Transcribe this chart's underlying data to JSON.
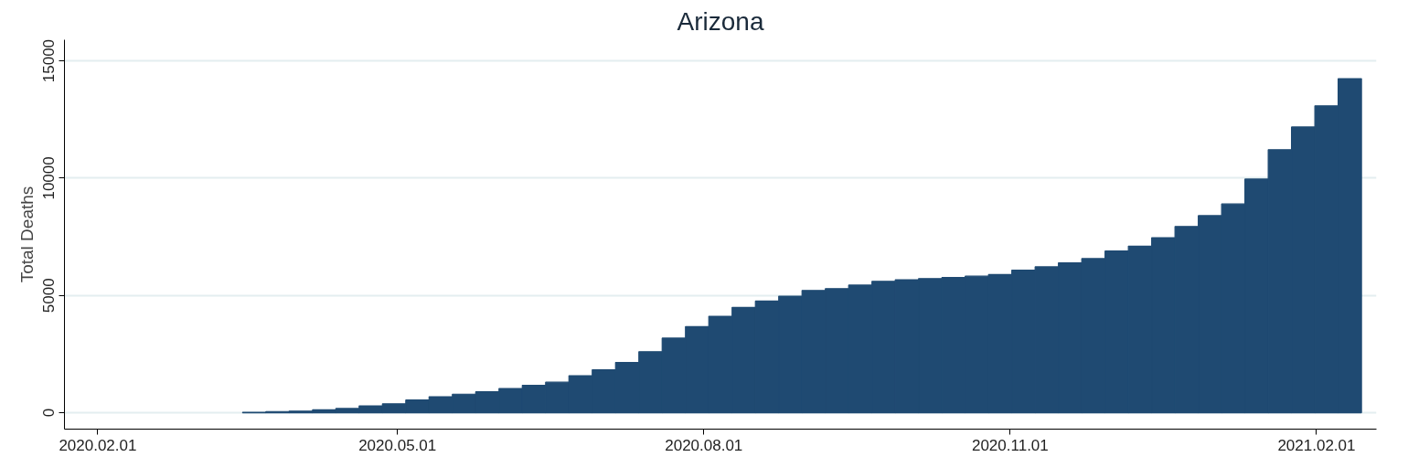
{
  "chart_data": {
    "type": "bar",
    "title": "Arizona",
    "ylabel": "Total Deaths",
    "color": "#1f4a72",
    "x": [
      "2020-03-19",
      "2020-03-26",
      "2020-04-02",
      "2020-04-09",
      "2020-04-16",
      "2020-04-23",
      "2020-04-30",
      "2020-05-07",
      "2020-05-14",
      "2020-05-21",
      "2020-05-28",
      "2020-06-04",
      "2020-06-11",
      "2020-06-18",
      "2020-06-25",
      "2020-07-02",
      "2020-07-09",
      "2020-07-16",
      "2020-07-23",
      "2020-07-30",
      "2020-08-06",
      "2020-08-13",
      "2020-08-20",
      "2020-08-27",
      "2020-09-03",
      "2020-09-10",
      "2020-09-17",
      "2020-09-24",
      "2020-10-01",
      "2020-10-08",
      "2020-10-15",
      "2020-10-22",
      "2020-10-29",
      "2020-11-05",
      "2020-11-12",
      "2020-11-19",
      "2020-11-26",
      "2020-12-03",
      "2020-12-10",
      "2020-12-17",
      "2020-12-24",
      "2020-12-31",
      "2021-01-07",
      "2021-01-14",
      "2021-01-21",
      "2021-01-28",
      "2021-02-04",
      "2021-02-11"
    ],
    "values": [
      20,
      50,
      70,
      120,
      180,
      290,
      380,
      540,
      680,
      790,
      890,
      1030,
      1170,
      1300,
      1580,
      1830,
      2140,
      2600,
      3180,
      3670,
      4110,
      4490,
      4760,
      4970,
      5210,
      5290,
      5440,
      5600,
      5670,
      5720,
      5760,
      5820,
      5890,
      6080,
      6220,
      6390,
      6570,
      6890,
      7100,
      7460,
      7940,
      8400,
      8900,
      9960,
      11210,
      12180,
      13080,
      14240
    ],
    "xlim": [
      "2020-01-22",
      "2021-02-19"
    ],
    "xticks": [
      {
        "value": "2020-02-01",
        "label": "2020.02.01"
      },
      {
        "value": "2020-05-01",
        "label": "2020.05.01"
      },
      {
        "value": "2020-08-01",
        "label": "2020.08.01"
      },
      {
        "value": "2020-11-01",
        "label": "2020.11.01"
      },
      {
        "value": "2021-02-01",
        "label": "2021.02.01"
      }
    ],
    "ylim": [
      -700,
      15900
    ],
    "yticks": [
      0,
      5000,
      10000,
      15000
    ],
    "grid": "y"
  }
}
